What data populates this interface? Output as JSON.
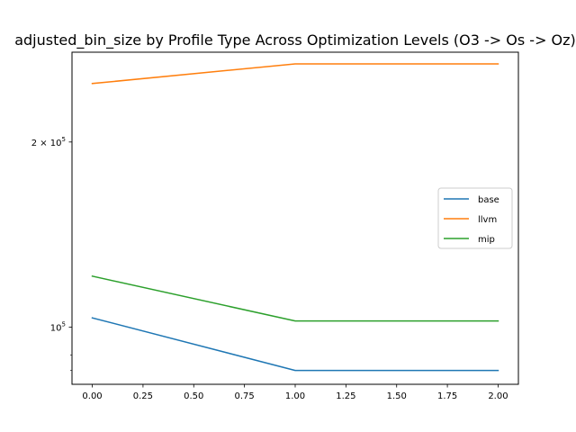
{
  "chart_data": {
    "type": "line",
    "title": "adjusted_bin_size by Profile Type Across Optimization Levels (O3 -> Os -> Oz)",
    "xlabel": "",
    "ylabel": "",
    "yscale": "log",
    "xlim": [
      -0.1,
      2.1
    ],
    "ylim": [
      80700,
      280000
    ],
    "x_ticks": [
      0.0,
      0.25,
      0.5,
      0.75,
      1.0,
      1.25,
      1.5,
      1.75,
      2.0
    ],
    "x_tick_labels": [
      "0.00",
      "0.25",
      "0.50",
      "0.75",
      "1.00",
      "1.25",
      "1.50",
      "1.75",
      "2.00"
    ],
    "y_major_ticks": [
      {
        "value": 100000,
        "base": "10",
        "exp": "5",
        "coef": ""
      },
      {
        "value": 200000,
        "base": "10",
        "exp": "5",
        "coef": "2 × "
      }
    ],
    "y_minor_ticks": [
      90000,
      85000
    ],
    "grid": false,
    "legend_position": "center-right",
    "x": [
      0,
      1,
      2
    ],
    "series": [
      {
        "name": "base",
        "color": "#1f77b4",
        "values": [
          103500,
          85000,
          85000
        ]
      },
      {
        "name": "llvm",
        "color": "#ff7f0e",
        "values": [
          249000,
          268000,
          268000
        ]
      },
      {
        "name": "mip",
        "color": "#2ca02c",
        "values": [
          121000,
          102300,
          102300
        ]
      }
    ]
  }
}
